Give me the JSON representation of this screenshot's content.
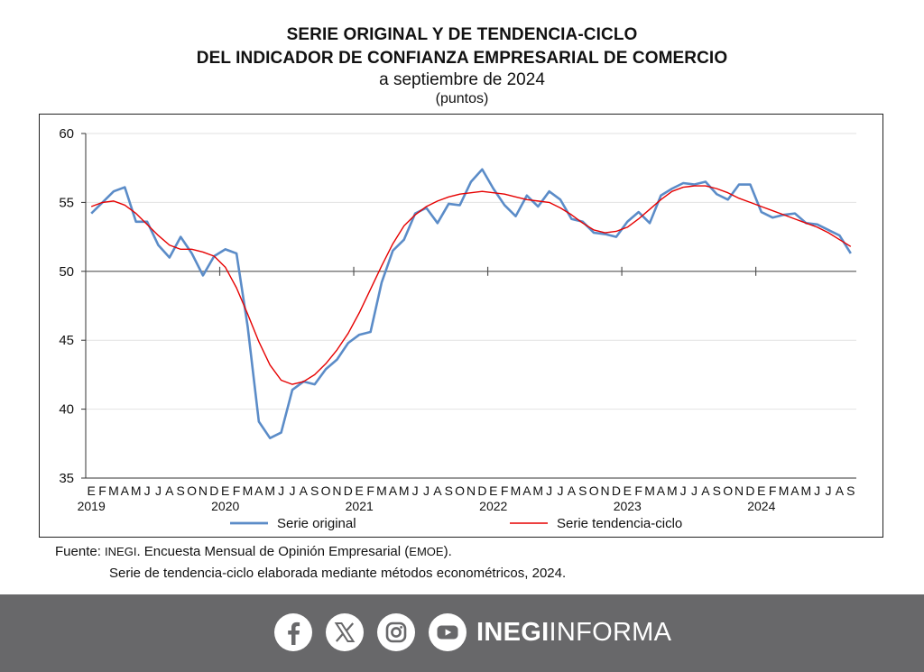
{
  "title": {
    "line1": "SERIE ORIGINAL Y DE TENDENCIA-CICLO",
    "line2": "DEL INDICADOR DE CONFIANZA EMPRESARIAL DE COMERCIO",
    "subtitle": "a septiembre de 2024",
    "units": "(puntos)"
  },
  "chart_data": {
    "type": "line",
    "ylim": [
      35,
      60
    ],
    "yticks": [
      "35",
      "40",
      "45",
      "50",
      "55",
      "60"
    ],
    "reference_line": 50,
    "grid": true,
    "legend_position": "bottom",
    "months": [
      "E",
      "F",
      "M",
      "A",
      "M",
      "J",
      "J",
      "A",
      "S",
      "O",
      "N",
      "D",
      "E",
      "F",
      "M",
      "A",
      "M",
      "J",
      "J",
      "A",
      "S",
      "O",
      "N",
      "D",
      "E",
      "F",
      "M",
      "A",
      "M",
      "J",
      "J",
      "A",
      "S",
      "O",
      "N",
      "D",
      "E",
      "F",
      "M",
      "A",
      "M",
      "J",
      "J",
      "A",
      "S",
      "O",
      "N",
      "D",
      "E",
      "F",
      "M",
      "A",
      "M",
      "J",
      "J",
      "A",
      "S",
      "O",
      "N",
      "D",
      "E",
      "F",
      "M",
      "A",
      "M",
      "J",
      "J",
      "A",
      "S"
    ],
    "years": [
      {
        "label": "2019",
        "start_index": 0
      },
      {
        "label": "2020",
        "start_index": 12
      },
      {
        "label": "2021",
        "start_index": 24
      },
      {
        "label": "2022",
        "start_index": 36
      },
      {
        "label": "2023",
        "start_index": 48
      },
      {
        "label": "2024",
        "start_index": 60
      }
    ],
    "series": [
      {
        "name": "Serie original",
        "color": "#5b8cc8",
        "values": [
          54.2,
          55.0,
          55.8,
          56.1,
          53.6,
          53.6,
          51.9,
          51.0,
          52.5,
          51.3,
          49.7,
          51.1,
          51.6,
          51.3,
          46.0,
          39.1,
          37.9,
          38.3,
          41.4,
          42.0,
          41.8,
          42.9,
          43.6,
          44.8,
          45.4,
          45.6,
          49.2,
          51.5,
          52.3,
          54.2,
          54.6,
          53.5,
          54.9,
          54.8,
          56.5,
          57.4,
          56.0,
          54.8,
          54.0,
          55.5,
          54.7,
          55.8,
          55.2,
          53.8,
          53.6,
          52.8,
          52.7,
          52.5,
          53.6,
          54.3,
          53.5,
          55.5,
          56.0,
          56.4,
          56.3,
          56.5,
          55.6,
          55.2,
          56.3,
          56.3,
          54.3,
          53.9,
          54.1,
          54.2,
          53.5,
          53.4,
          53.0,
          52.6,
          51.3
        ]
      },
      {
        "name": "Serie tendencia-ciclo",
        "color": "#e60000",
        "values": [
          54.7,
          55.0,
          55.1,
          54.8,
          54.2,
          53.4,
          52.6,
          51.9,
          51.6,
          51.6,
          51.4,
          51.1,
          50.3,
          48.8,
          46.9,
          44.9,
          43.2,
          42.1,
          41.8,
          42.0,
          42.5,
          43.3,
          44.3,
          45.5,
          47.0,
          48.7,
          50.4,
          52.0,
          53.3,
          54.1,
          54.7,
          55.1,
          55.4,
          55.6,
          55.7,
          55.8,
          55.7,
          55.6,
          55.4,
          55.2,
          55.1,
          55.0,
          54.6,
          54.1,
          53.5,
          53.0,
          52.8,
          52.9,
          53.2,
          53.8,
          54.5,
          55.2,
          55.8,
          56.1,
          56.2,
          56.2,
          56.0,
          55.7,
          55.3,
          55.0,
          54.7,
          54.4,
          54.1,
          53.8,
          53.5,
          53.2,
          52.8,
          52.3,
          51.8
        ]
      }
    ]
  },
  "footer": {
    "source_label": "Fuente: ",
    "source_org": "INEGI",
    "source_text": ". Encuesta Mensual de Opinión Empresarial (",
    "source_abbr": "EMOE",
    "source_end": ").",
    "note": "Serie de tendencia-ciclo elaborada mediante métodos econométricos, 2024."
  },
  "banner": {
    "brand_bold": "INEGI",
    "brand_regular": "INFORMA",
    "icons": [
      "facebook-icon",
      "x-icon",
      "instagram-icon",
      "youtube-icon"
    ]
  }
}
